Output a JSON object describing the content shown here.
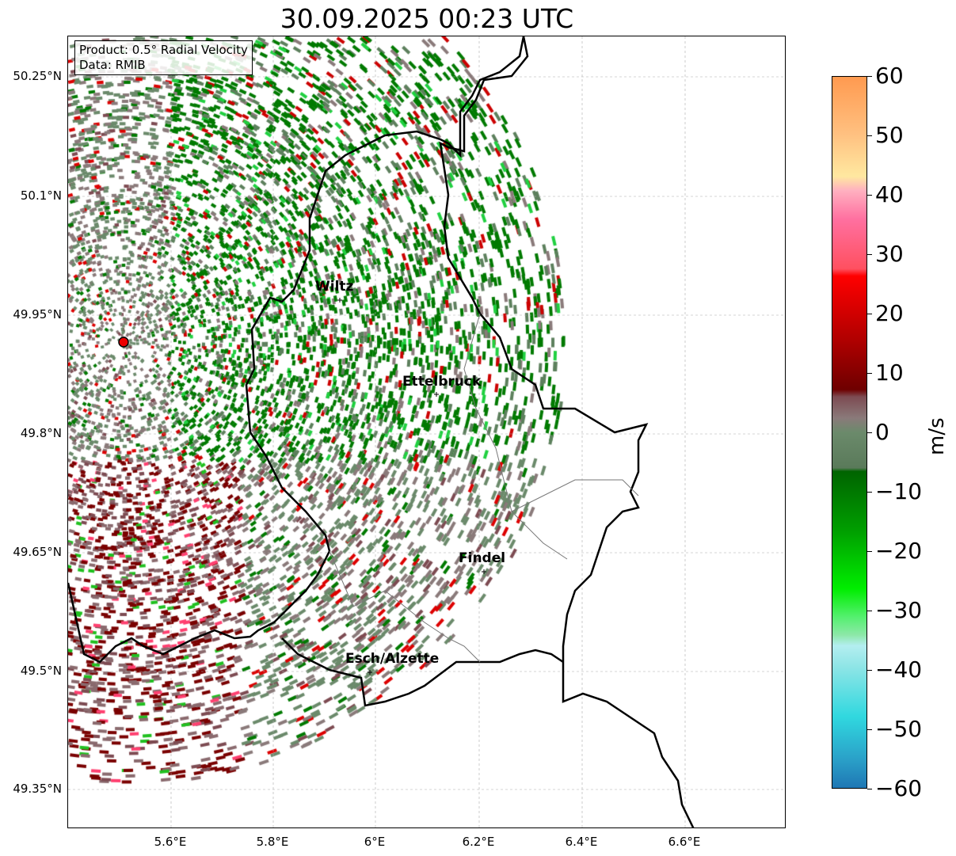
{
  "title": "30.09.2025 00:23 UTC",
  "info": {
    "product": "Product: 0.5° Radial Velocity",
    "data": "Data: RMIB"
  },
  "lat_ticks": [
    "50.25°N",
    "50.1°N",
    "49.95°N",
    "49.8°N",
    "49.65°N",
    "49.5°N",
    "49.35°N"
  ],
  "lon_ticks": [
    "5.6°E",
    "5.8°E",
    "6°E",
    "6.2°E",
    "6.4°E",
    "6.6°E"
  ],
  "cities": [
    {
      "name": "Wiltz"
    },
    {
      "name": "Ettelbruck"
    },
    {
      "name": "Findel"
    },
    {
      "name": "Esch/Alzette"
    }
  ],
  "colorbar": {
    "label": "m/s",
    "ticks": [
      "60",
      "50",
      "40",
      "30",
      "20",
      "10",
      "0",
      "−10",
      "−20",
      "−30",
      "−40",
      "−50",
      "−60"
    ],
    "min": -60,
    "max": 60
  }
}
